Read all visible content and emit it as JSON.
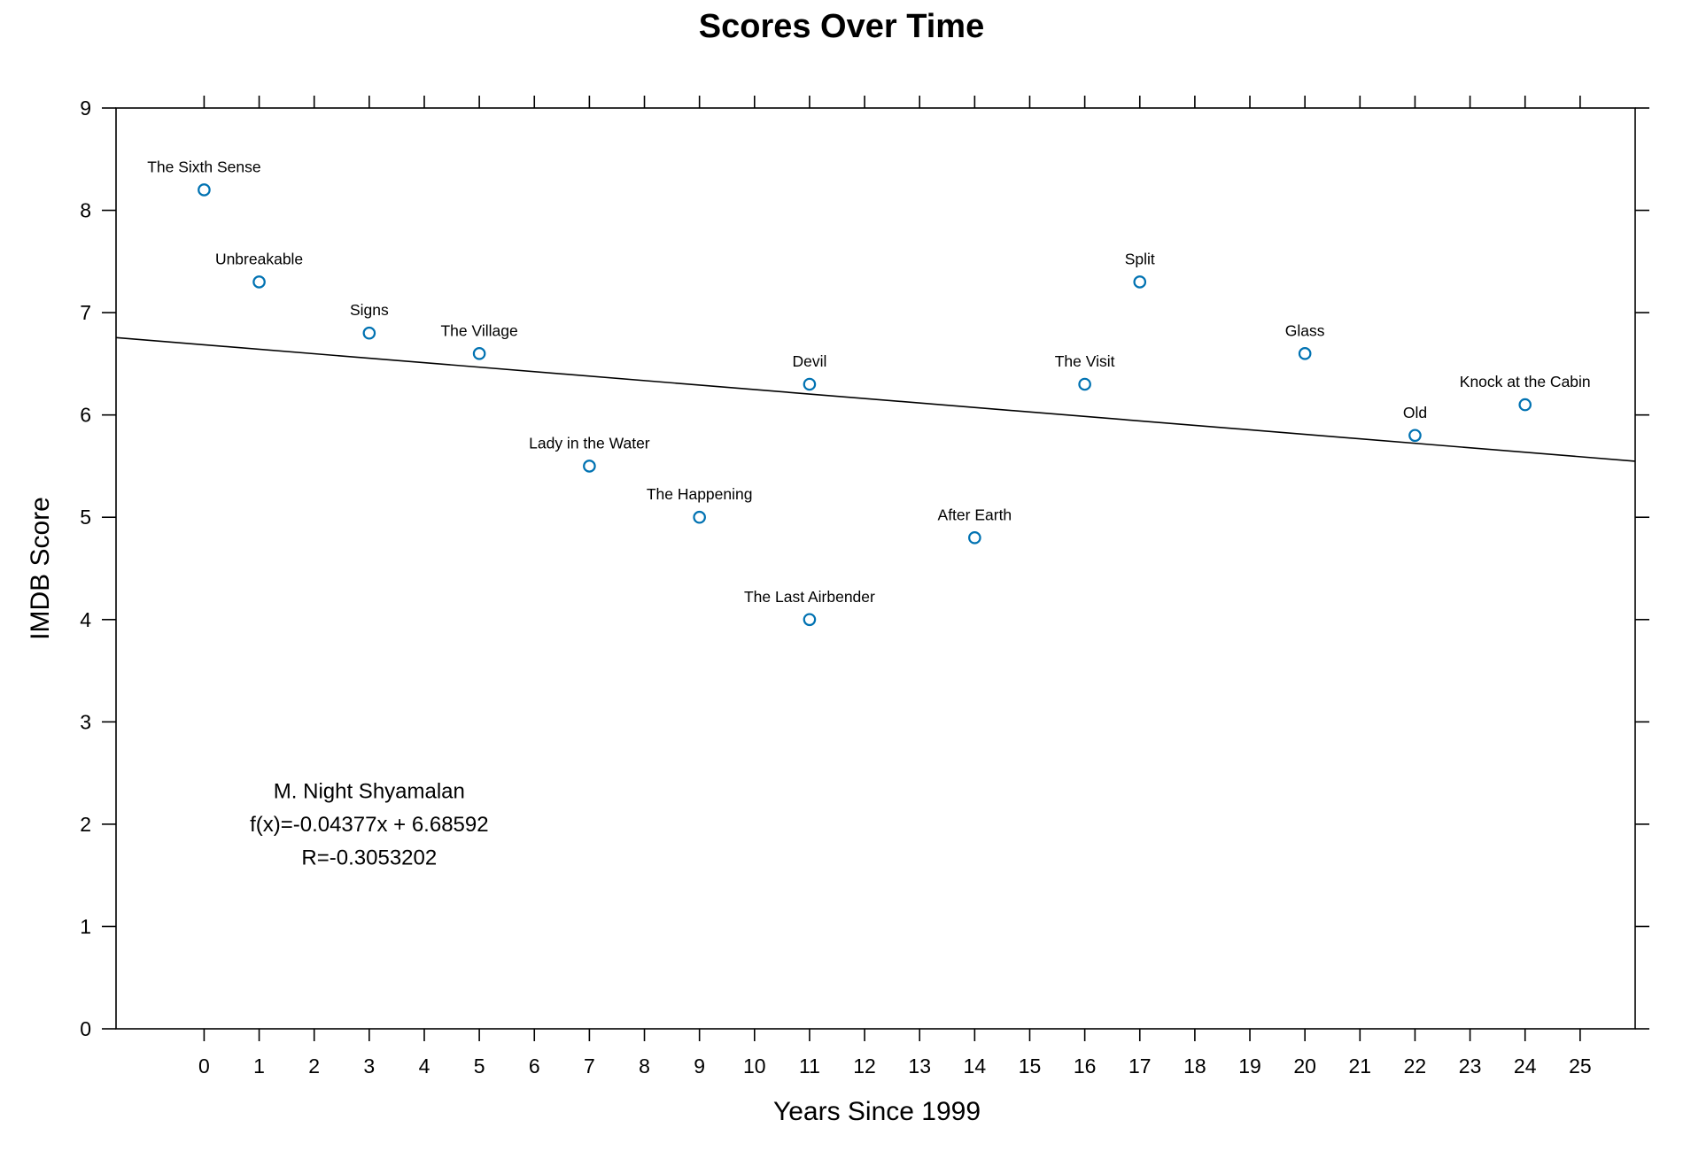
{
  "chart_data": {
    "type": "scatter",
    "title": "Scores Over Time",
    "xlabel": "Years Since 1999",
    "ylabel": "IMDB Score",
    "xlim": [
      -1.6,
      26
    ],
    "ylim": [
      0,
      9
    ],
    "x_ticks": [
      0,
      1,
      2,
      3,
      4,
      5,
      6,
      7,
      8,
      9,
      10,
      11,
      12,
      13,
      14,
      15,
      16,
      17,
      18,
      19,
      20,
      21,
      22,
      23,
      24,
      25
    ],
    "y_ticks": [
      0,
      1,
      2,
      3,
      4,
      5,
      6,
      7,
      8,
      9
    ],
    "grid": false,
    "point_color": "#0072B2",
    "points": [
      {
        "label": "The Sixth Sense",
        "x": 0,
        "y": 8.2
      },
      {
        "label": "Unbreakable",
        "x": 1,
        "y": 7.3
      },
      {
        "label": "Signs",
        "x": 3,
        "y": 6.8
      },
      {
        "label": "The Village",
        "x": 5,
        "y": 6.6
      },
      {
        "label": "Lady in the Water",
        "x": 7,
        "y": 5.5
      },
      {
        "label": "The Happening",
        "x": 9,
        "y": 5.0
      },
      {
        "label": "The Last Airbender",
        "x": 11,
        "y": 4.0
      },
      {
        "label": "Devil",
        "x": 11,
        "y": 6.3
      },
      {
        "label": "After Earth",
        "x": 14,
        "y": 4.8
      },
      {
        "label": "The Visit",
        "x": 16,
        "y": 6.3
      },
      {
        "label": "Split",
        "x": 17,
        "y": 7.3
      },
      {
        "label": "Glass",
        "x": 20,
        "y": 6.6
      },
      {
        "label": "Old",
        "x": 22,
        "y": 5.8
      },
      {
        "label": "Knock at the Cabin",
        "x": 24,
        "y": 6.1
      }
    ],
    "regression": {
      "slope": -0.04377,
      "intercept": 6.68592
    },
    "annotation": {
      "lines": [
        "M. Night Shyamalan",
        "f(x)=-0.04377x + 6.68592",
        "R=-0.3053202"
      ],
      "anchor": {
        "x": 3,
        "y": 2.0
      }
    }
  }
}
